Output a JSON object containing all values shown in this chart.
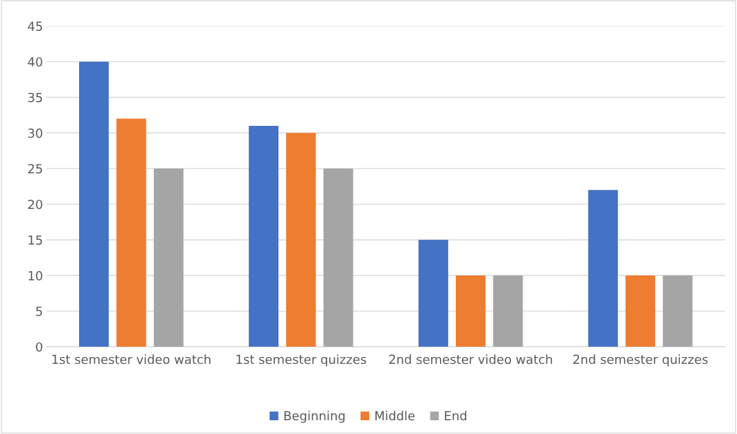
{
  "chart_data": {
    "type": "bar",
    "categories": [
      "1st semester video watch",
      "1st semester quizzes",
      "2nd semester video watch",
      "2nd semester quizzes"
    ],
    "series": [
      {
        "name": "Beginning",
        "color": "#4472c4",
        "values": [
          40,
          31,
          15,
          22
        ]
      },
      {
        "name": "Middle",
        "color": "#ed7d31",
        "values": [
          32,
          30,
          10,
          10
        ]
      },
      {
        "name": "End",
        "color": "#a5a5a5",
        "values": [
          25,
          25,
          10,
          10
        ]
      }
    ],
    "ylim": [
      0,
      45
    ],
    "yticks": [
      0,
      5,
      10,
      15,
      20,
      25,
      30,
      35,
      40,
      45
    ],
    "grid": "y",
    "legend": "bottom"
  }
}
